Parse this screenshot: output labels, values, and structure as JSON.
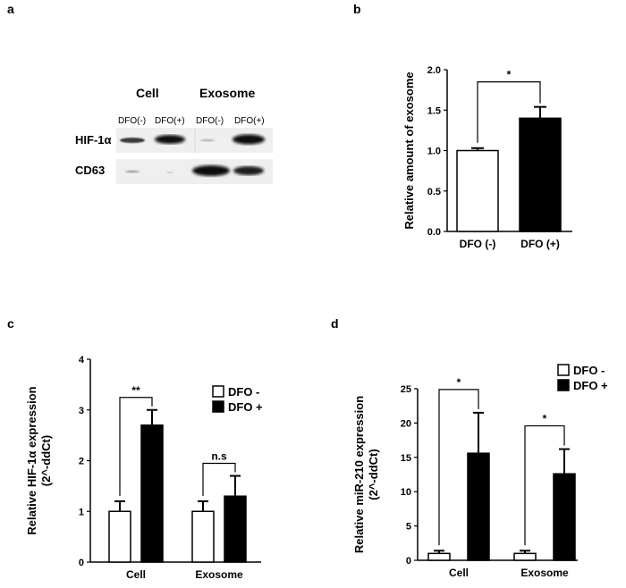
{
  "panels": {
    "a": {
      "label": "a",
      "groups": [
        "Cell",
        "Exosome"
      ],
      "lanes": [
        "DFO(-)",
        "DFO(+)",
        "DFO(-)",
        "DFO(+)"
      ],
      "rows": [
        "HIF-1α",
        "CD63"
      ]
    },
    "b": {
      "label": "b"
    },
    "c": {
      "label": "c"
    },
    "d": {
      "label": "d"
    }
  },
  "chart_data": [
    {
      "panel": "b",
      "type": "bar",
      "categories": [
        "DFO (-)",
        "DFO (+)"
      ],
      "values": [
        1.0,
        1.4
      ],
      "errors": [
        0.03,
        0.14
      ],
      "fill": [
        "#ffffff",
        "#000000"
      ],
      "ylabel": "Relative amount of exosome",
      "ylim": [
        0,
        2.0
      ],
      "yticks": [
        "0.0",
        "0.5",
        "1.0",
        "1.5",
        "2.0"
      ],
      "annotations": [
        {
          "between": [
            0,
            1
          ],
          "text": "*"
        }
      ]
    },
    {
      "panel": "c",
      "type": "bar",
      "categories": [
        "Cell",
        "Exosome"
      ],
      "series": [
        {
          "name": "DFO -",
          "values": [
            1.0,
            1.0
          ],
          "errors": [
            0.2,
            0.2
          ],
          "color": "#ffffff"
        },
        {
          "name": "DFO +",
          "values": [
            2.7,
            1.3
          ],
          "errors": [
            0.3,
            0.4
          ],
          "color": "#000000"
        }
      ],
      "ylabel": "Relative HIF-1α expression",
      "ylabel2": "(2^-ddCt)",
      "ylim": [
        0,
        4
      ],
      "yticks": [
        "0",
        "1",
        "2",
        "3",
        "4"
      ],
      "legend": "top-right",
      "annotations": [
        {
          "category": 0,
          "text": "**"
        },
        {
          "category": 1,
          "text": "n.s"
        }
      ]
    },
    {
      "panel": "d",
      "type": "bar",
      "categories": [
        "Cell",
        "Exosome"
      ],
      "series": [
        {
          "name": "DFO -",
          "values": [
            1.0,
            1.0
          ],
          "errors": [
            0.4,
            0.4
          ],
          "color": "#ffffff"
        },
        {
          "name": "DFO +",
          "values": [
            15.6,
            12.6
          ],
          "errors": [
            5.9,
            3.6
          ],
          "color": "#000000"
        }
      ],
      "ylabel": "Relative miR-210 expression",
      "ylabel2": "(2^-ddCt)",
      "ylim": [
        0,
        25
      ],
      "yticks": [
        "0",
        "5",
        "10",
        "15",
        "20",
        "25"
      ],
      "legend": "top-right",
      "annotations": [
        {
          "category": 0,
          "text": "*"
        },
        {
          "category": 1,
          "text": "*"
        }
      ]
    }
  ]
}
